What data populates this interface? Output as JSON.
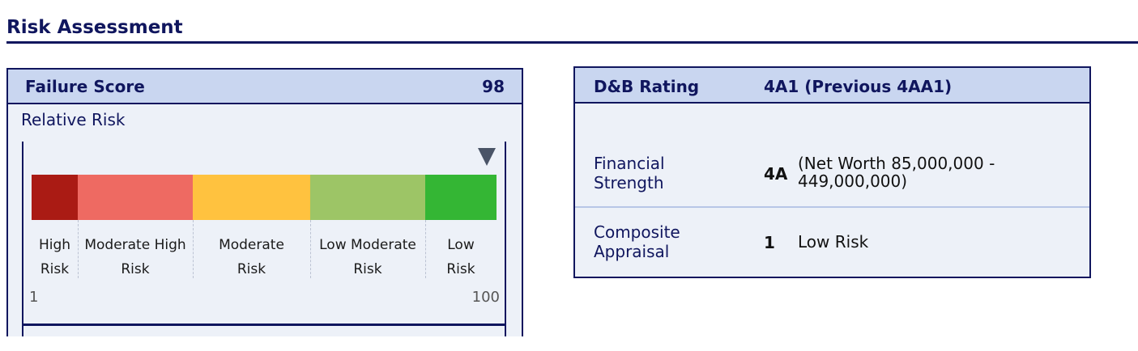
{
  "page": {
    "title": "Risk Assessment"
  },
  "failure_score": {
    "label": "Failure Score",
    "value": "98",
    "relative_risk_label": "Relative Risk",
    "marker_level": 98,
    "scale": {
      "min": "1",
      "max": "100"
    },
    "bands": [
      {
        "line1": "High",
        "line2": "Risk",
        "color": "#aa1b14"
      },
      {
        "line1": "Moderate High",
        "line2": "Risk",
        "color": "#ee6a62"
      },
      {
        "line1": "Moderate",
        "line2": "Risk",
        "color": "#ffc23f"
      },
      {
        "line1": "Low Moderate",
        "line2": "Risk",
        "color": "#9dc566"
      },
      {
        "line1": "Low",
        "line2": "Risk",
        "color": "#34b634"
      }
    ]
  },
  "db_rating": {
    "label": "D&B Rating",
    "value": "4A1 (Previous 4AA1)",
    "financial_strength": {
      "label_line1": "Financial",
      "label_line2": "Strength",
      "code": "4A",
      "desc_line1": "(Net Worth 85,000,000 -",
      "desc_line2": "449,000,000)"
    },
    "composite_appraisal": {
      "label_line1": "Composite",
      "label_line2": "Appraisal",
      "code": "1",
      "desc": "Low Risk"
    }
  }
}
